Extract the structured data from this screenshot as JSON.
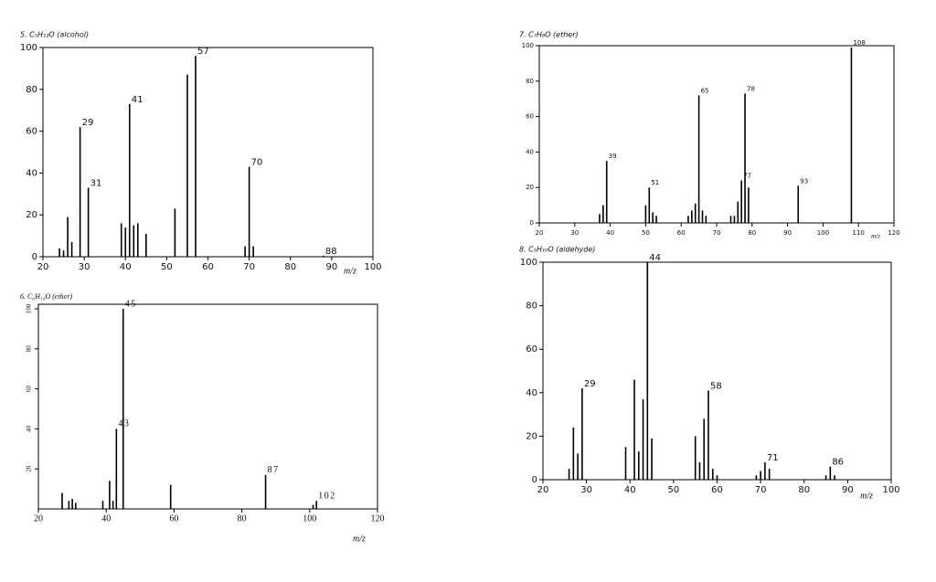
{
  "chart_data": [
    {
      "type": "bar",
      "title": "5. C₅H₁₂O (alcohol)",
      "x_label": "m/z",
      "x": [
        24,
        25,
        26,
        27,
        29,
        31,
        39,
        40,
        41,
        42,
        43,
        45,
        52,
        55,
        57,
        69,
        70,
        71,
        88
      ],
      "values": [
        4,
        3,
        19,
        7,
        62,
        33,
        16,
        14,
        73,
        15,
        16,
        11,
        23,
        87,
        96,
        5,
        43,
        5,
        0.5
      ],
      "peak_labels": [
        29,
        31,
        41,
        57,
        70,
        88
      ],
      "color": "#000000",
      "xlim": [
        20,
        100
      ],
      "ylim": [
        0,
        100
      ],
      "xticks": [
        20,
        30,
        40,
        50,
        60,
        70,
        80,
        90,
        100
      ],
      "yticks": [
        0,
        20,
        40,
        60,
        80,
        100
      ]
    },
    {
      "type": "bar",
      "title": "6. C₆H₁₄O (ether)",
      "x_label": "m/z",
      "x": [
        27,
        29,
        30,
        31,
        39,
        41,
        42,
        43,
        45,
        59,
        87,
        101,
        102
      ],
      "values": [
        8,
        4,
        5,
        3,
        4,
        14,
        4,
        40,
        100,
        12,
        17,
        2,
        4
      ],
      "peak_labels": [
        45,
        43,
        87,
        102
      ],
      "color": "#000000",
      "xlim": [
        20,
        120
      ],
      "ylim": [
        0,
        100
      ],
      "xticks": [
        20,
        40,
        60,
        80,
        100,
        120
      ],
      "yticks": [
        20,
        40,
        60,
        80,
        100
      ]
    },
    {
      "type": "bar",
      "title": "7. C₇H₈O (ether)",
      "x_label": "m/z",
      "x": [
        37,
        38,
        39,
        50,
        51,
        52,
        53,
        62,
        63,
        64,
        65,
        66,
        67,
        74,
        75,
        76,
        77,
        78,
        79,
        93,
        108
      ],
      "values": [
        5,
        10,
        35,
        10,
        20,
        6,
        4,
        4,
        7,
        11,
        72,
        7,
        4,
        4,
        4,
        12,
        24,
        73,
        20,
        21,
        99
      ],
      "peak_labels": [
        39,
        51,
        65,
        77,
        78,
        93,
        108
      ],
      "color": "#000000",
      "xlim": [
        20,
        120
      ],
      "ylim": [
        0,
        100
      ],
      "xticks": [
        20,
        30,
        40,
        50,
        60,
        70,
        80,
        90,
        100,
        110,
        120
      ],
      "yticks": [
        0,
        20,
        40,
        60,
        80,
        100
      ]
    },
    {
      "type": "bar",
      "title": "8. C₅H₁₀O (aldehyde)",
      "x_label": "m/z",
      "x": [
        26,
        27,
        28,
        29,
        39,
        41,
        42,
        43,
        44,
        45,
        55,
        56,
        57,
        58,
        59,
        60,
        69,
        70,
        71,
        72,
        85,
        86,
        87
      ],
      "values": [
        5,
        24,
        12,
        42,
        15,
        46,
        13,
        37,
        100,
        19,
        20,
        8,
        28,
        41,
        5,
        2,
        2,
        4,
        8,
        5,
        2,
        6,
        2
      ],
      "peak_labels": [
        29,
        44,
        58,
        71,
        86
      ],
      "color": "#000000",
      "xlim": [
        20,
        100
      ],
      "ylim": [
        0,
        100
      ],
      "xticks": [
        20,
        30,
        40,
        50,
        60,
        70,
        80,
        90,
        100
      ],
      "yticks": [
        0,
        20,
        40,
        60,
        80,
        100
      ]
    }
  ]
}
